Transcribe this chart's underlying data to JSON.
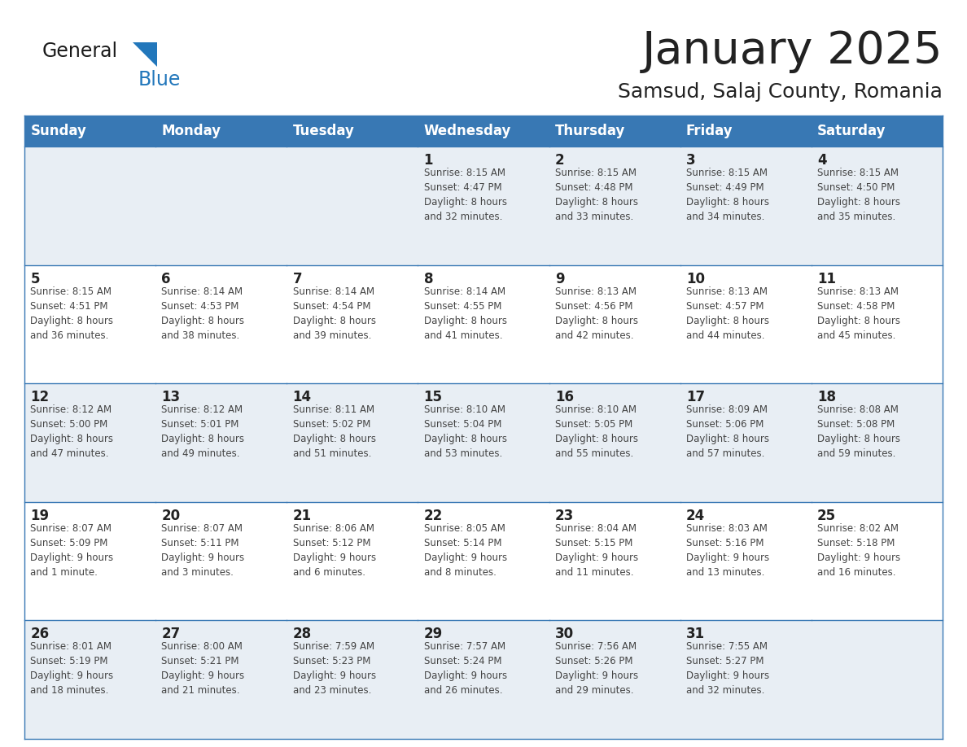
{
  "title": "January 2025",
  "subtitle": "Samsud, Salaj County, Romania",
  "header_color": "#3878b4",
  "header_text_color": "#ffffff",
  "day_names": [
    "Sunday",
    "Monday",
    "Tuesday",
    "Wednesday",
    "Thursday",
    "Friday",
    "Saturday"
  ],
  "alt_row_color": "#e8eef4",
  "white_row_color": "#ffffff",
  "cell_text_color": "#444444",
  "day_num_color": "#222222",
  "border_color": "#3878b4",
  "logo_general_color": "#1a1a1a",
  "logo_blue_color": "#2277bb",
  "weeks": [
    [
      {
        "day": 0,
        "text": ""
      },
      {
        "day": 0,
        "text": ""
      },
      {
        "day": 0,
        "text": ""
      },
      {
        "day": 1,
        "text": "Sunrise: 8:15 AM\nSunset: 4:47 PM\nDaylight: 8 hours\nand 32 minutes."
      },
      {
        "day": 2,
        "text": "Sunrise: 8:15 AM\nSunset: 4:48 PM\nDaylight: 8 hours\nand 33 minutes."
      },
      {
        "day": 3,
        "text": "Sunrise: 8:15 AM\nSunset: 4:49 PM\nDaylight: 8 hours\nand 34 minutes."
      },
      {
        "day": 4,
        "text": "Sunrise: 8:15 AM\nSunset: 4:50 PM\nDaylight: 8 hours\nand 35 minutes."
      }
    ],
    [
      {
        "day": 5,
        "text": "Sunrise: 8:15 AM\nSunset: 4:51 PM\nDaylight: 8 hours\nand 36 minutes."
      },
      {
        "day": 6,
        "text": "Sunrise: 8:14 AM\nSunset: 4:53 PM\nDaylight: 8 hours\nand 38 minutes."
      },
      {
        "day": 7,
        "text": "Sunrise: 8:14 AM\nSunset: 4:54 PM\nDaylight: 8 hours\nand 39 minutes."
      },
      {
        "day": 8,
        "text": "Sunrise: 8:14 AM\nSunset: 4:55 PM\nDaylight: 8 hours\nand 41 minutes."
      },
      {
        "day": 9,
        "text": "Sunrise: 8:13 AM\nSunset: 4:56 PM\nDaylight: 8 hours\nand 42 minutes."
      },
      {
        "day": 10,
        "text": "Sunrise: 8:13 AM\nSunset: 4:57 PM\nDaylight: 8 hours\nand 44 minutes."
      },
      {
        "day": 11,
        "text": "Sunrise: 8:13 AM\nSunset: 4:58 PM\nDaylight: 8 hours\nand 45 minutes."
      }
    ],
    [
      {
        "day": 12,
        "text": "Sunrise: 8:12 AM\nSunset: 5:00 PM\nDaylight: 8 hours\nand 47 minutes."
      },
      {
        "day": 13,
        "text": "Sunrise: 8:12 AM\nSunset: 5:01 PM\nDaylight: 8 hours\nand 49 minutes."
      },
      {
        "day": 14,
        "text": "Sunrise: 8:11 AM\nSunset: 5:02 PM\nDaylight: 8 hours\nand 51 minutes."
      },
      {
        "day": 15,
        "text": "Sunrise: 8:10 AM\nSunset: 5:04 PM\nDaylight: 8 hours\nand 53 minutes."
      },
      {
        "day": 16,
        "text": "Sunrise: 8:10 AM\nSunset: 5:05 PM\nDaylight: 8 hours\nand 55 minutes."
      },
      {
        "day": 17,
        "text": "Sunrise: 8:09 AM\nSunset: 5:06 PM\nDaylight: 8 hours\nand 57 minutes."
      },
      {
        "day": 18,
        "text": "Sunrise: 8:08 AM\nSunset: 5:08 PM\nDaylight: 8 hours\nand 59 minutes."
      }
    ],
    [
      {
        "day": 19,
        "text": "Sunrise: 8:07 AM\nSunset: 5:09 PM\nDaylight: 9 hours\nand 1 minute."
      },
      {
        "day": 20,
        "text": "Sunrise: 8:07 AM\nSunset: 5:11 PM\nDaylight: 9 hours\nand 3 minutes."
      },
      {
        "day": 21,
        "text": "Sunrise: 8:06 AM\nSunset: 5:12 PM\nDaylight: 9 hours\nand 6 minutes."
      },
      {
        "day": 22,
        "text": "Sunrise: 8:05 AM\nSunset: 5:14 PM\nDaylight: 9 hours\nand 8 minutes."
      },
      {
        "day": 23,
        "text": "Sunrise: 8:04 AM\nSunset: 5:15 PM\nDaylight: 9 hours\nand 11 minutes."
      },
      {
        "day": 24,
        "text": "Sunrise: 8:03 AM\nSunset: 5:16 PM\nDaylight: 9 hours\nand 13 minutes."
      },
      {
        "day": 25,
        "text": "Sunrise: 8:02 AM\nSunset: 5:18 PM\nDaylight: 9 hours\nand 16 minutes."
      }
    ],
    [
      {
        "day": 26,
        "text": "Sunrise: 8:01 AM\nSunset: 5:19 PM\nDaylight: 9 hours\nand 18 minutes."
      },
      {
        "day": 27,
        "text": "Sunrise: 8:00 AM\nSunset: 5:21 PM\nDaylight: 9 hours\nand 21 minutes."
      },
      {
        "day": 28,
        "text": "Sunrise: 7:59 AM\nSunset: 5:23 PM\nDaylight: 9 hours\nand 23 minutes."
      },
      {
        "day": 29,
        "text": "Sunrise: 7:57 AM\nSunset: 5:24 PM\nDaylight: 9 hours\nand 26 minutes."
      },
      {
        "day": 30,
        "text": "Sunrise: 7:56 AM\nSunset: 5:26 PM\nDaylight: 9 hours\nand 29 minutes."
      },
      {
        "day": 31,
        "text": "Sunrise: 7:55 AM\nSunset: 5:27 PM\nDaylight: 9 hours\nand 32 minutes."
      },
      {
        "day": 0,
        "text": ""
      }
    ]
  ],
  "fig_width": 11.88,
  "fig_height": 9.18,
  "dpi": 100
}
